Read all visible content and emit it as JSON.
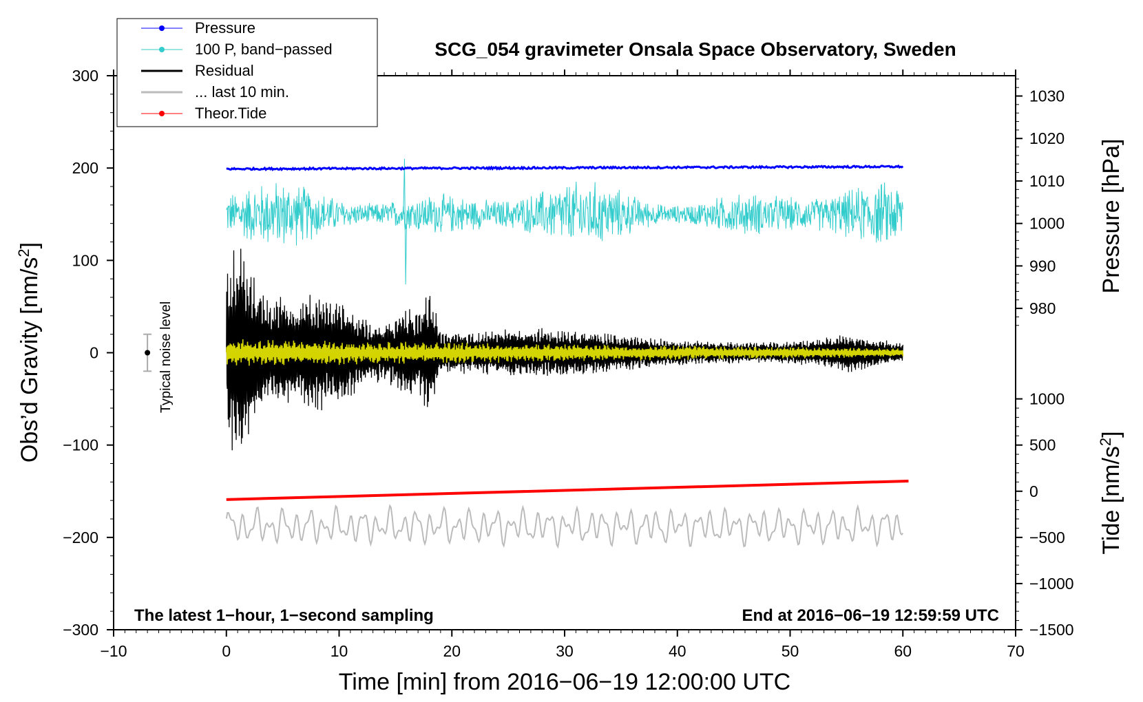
{
  "chart_data": {
    "type": "line",
    "title": "SCG_054 gravimeter Onsala Space Observatory, Sweden",
    "xlabel": "Time [min] from 2016−06−19 12:00:00 UTC",
    "ylabel_left": "Obs’d Gravity [nm/s",
    "ylabel_left_sup": "2",
    "ylabel_left_close": "]",
    "ylabel_pressure": "Pressure [hPa]",
    "ylabel_tide": "Tide [nm/s",
    "ylabel_tide_sup": "2",
    "ylabel_tide_close": "]",
    "xlim": [
      -10,
      70
    ],
    "ylim_left": [
      -300,
      300
    ],
    "xticks": [
      "−10",
      "0",
      "10",
      "20",
      "30",
      "40",
      "50",
      "60",
      "70"
    ],
    "xtick_values": [
      -10,
      0,
      10,
      20,
      30,
      40,
      50,
      60,
      70
    ],
    "yticks_left": [
      "300",
      "200",
      "100",
      "0",
      "−100",
      "−200",
      "−300"
    ],
    "ytick_left_values": [
      300,
      200,
      100,
      0,
      -100,
      -200,
      -300
    ],
    "pressure_axis": {
      "ticks": [
        "1030",
        "1020",
        "1010",
        "1000",
        "990",
        "980"
      ],
      "tick_values": [
        1030,
        1020,
        1010,
        1000,
        990,
        980
      ],
      "ref_value": 1000,
      "ref_gravity": 140,
      "gravity_per_hpa": 4.6
    },
    "tide_axis": {
      "ticks": [
        "1000",
        "500",
        "0",
        "−500",
        "−1000",
        "−1500"
      ],
      "tick_values": [
        1000,
        500,
        0,
        -500,
        -1000,
        -1500
      ],
      "ref_value": 0,
      "ref_gravity": -150,
      "gravity_per_unit": 0.1
    },
    "legend": {
      "placement": "top-left",
      "entries": [
        {
          "label": "Pressure",
          "color": "#0000ff",
          "marker": true
        },
        {
          "label": "100 P, band−passed",
          "color": "#33cccc",
          "marker": true
        },
        {
          "label": "Residual",
          "color": "#000000",
          "marker": false
        },
        {
          "label": "... last 10 min.",
          "color": "#bbbbbb",
          "marker": false
        },
        {
          "label": "Theor.Tide",
          "color": "#ff0000",
          "marker": true
        }
      ]
    },
    "annotations": {
      "bottom_left": "The latest 1−hour, 1−second sampling",
      "bottom_right": "End at 2016−06−19 12:59:59 UTC",
      "noise_label": "Typical noise level"
    },
    "noise_bar": {
      "x": -7,
      "center": 0,
      "half_range": 20
    },
    "series": [
      {
        "name": "Pressure",
        "color": "#0000ff",
        "x_range": [
          0,
          60
        ],
        "gravity_start": 199,
        "gravity_end": 201.5,
        "noise": 1.0
      },
      {
        "name": "100 P, band-passed",
        "color": "#33cccc",
        "x_range": [
          0,
          60
        ],
        "center": 150,
        "amplitude": 28,
        "peak_max": 210,
        "peak_min": 74
      },
      {
        "name": "Residual",
        "color": "#000000",
        "x_range": [
          0,
          60
        ],
        "center": 0,
        "envelope_min": [
          0,
          1,
          2,
          3,
          4,
          5,
          6,
          8,
          9,
          10,
          12,
          14,
          16,
          17,
          18,
          19,
          22,
          25,
          30,
          35,
          40,
          45,
          50,
          54,
          55,
          60
        ],
        "envelope_amp": [
          85,
          125,
          95,
          70,
          55,
          65,
          50,
          70,
          55,
          62,
          40,
          30,
          50,
          45,
          72,
          25,
          22,
          28,
          26,
          20,
          14,
          12,
          12,
          18,
          22,
          10
        ]
      },
      {
        "name": "Residual band (yellow)",
        "color": "#d4d400",
        "x_range": [
          0,
          60
        ],
        "center": 0,
        "amplitude_start": 15,
        "amplitude_end": 5
      },
      {
        "name": "... last 10 min.",
        "color": "#bbbbbb",
        "x_range": [
          0,
          60
        ],
        "center": -188,
        "amplitude": 20
      },
      {
        "name": "Theor.Tide",
        "color": "#ff0000",
        "x_range": [
          0,
          60.5
        ],
        "tide_start": -90,
        "tide_end": 110
      }
    ]
  }
}
